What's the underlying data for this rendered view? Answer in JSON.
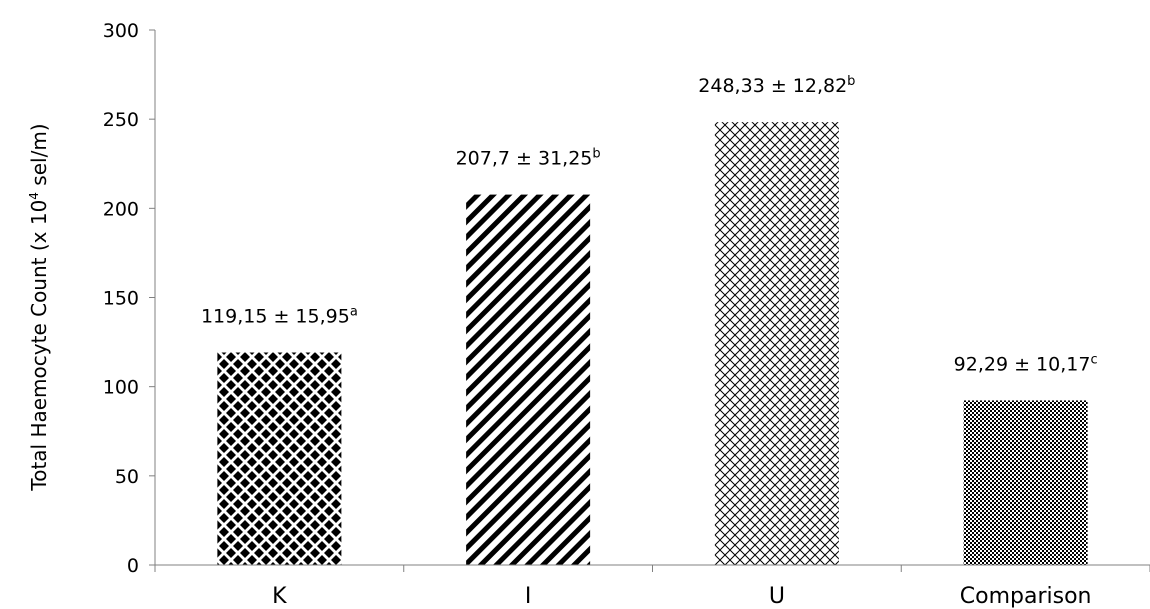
{
  "chart_data": {
    "type": "bar",
    "categories": [
      "K",
      "I",
      "U",
      "Comparison"
    ],
    "values": [
      119.15,
      207.7,
      248.33,
      92.29
    ],
    "data_labels": [
      {
        "text": "119,15 ± 15,95",
        "sup": "a"
      },
      {
        "text": "207,7 ± 31,25",
        "sup": "b"
      },
      {
        "text": "248,33 ± 12,82",
        "sup": "b"
      },
      {
        "text": "92,29 ± 10,17",
        "sup": "c"
      }
    ],
    "ylabel": {
      "before": "Total Haemocyte Count (x 10",
      "sup": "4",
      "after": " sel/m)"
    },
    "xlabel": "",
    "ylim": [
      0,
      300
    ],
    "yticks": [
      "0",
      "50",
      "100",
      "150",
      "200",
      "250",
      "300"
    ],
    "bar_patterns": [
      "diamond-checker",
      "diagonal-stripes",
      "crosshatch",
      "fine-checker"
    ],
    "colors": {
      "pattern": "#000000",
      "background": "#ffffff",
      "axis": "#808080"
    }
  }
}
